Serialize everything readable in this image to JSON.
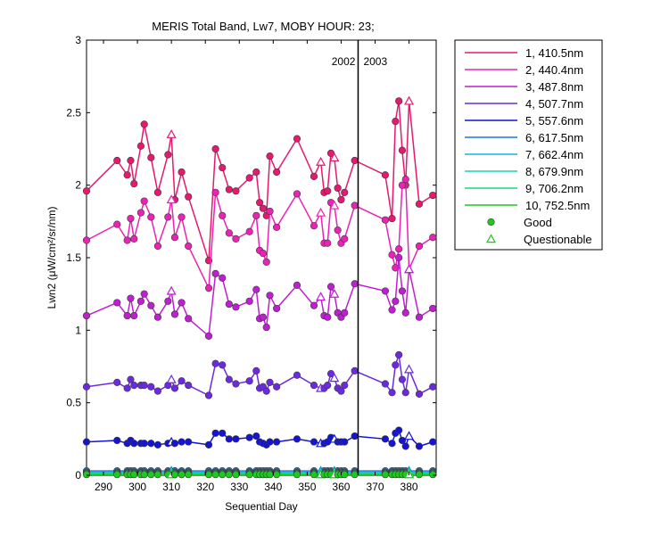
{
  "chart_data": {
    "type": "line",
    "title": "MERIS Total Band, Lw7, MOBY HOUR: 23;",
    "xlabel": "Sequential Day",
    "ylabel": "Lwn2 (μW/cm²/sr/nm)",
    "xlim": [
      285,
      388
    ],
    "ylim": [
      0,
      3
    ],
    "xticks": [
      290,
      300,
      310,
      320,
      330,
      340,
      350,
      360,
      370,
      380
    ],
    "yticks": [
      0,
      0.5,
      1,
      1.5,
      2,
      2.5,
      3
    ],
    "ytick_labels": [
      "0",
      "0.5",
      "1",
      "1.5",
      "2",
      "2.5",
      "3"
    ],
    "year_divider": {
      "x": 365,
      "labels": [
        "2002",
        "2003"
      ]
    },
    "legend_position": "outside-right",
    "x": [
      285,
      294,
      297,
      298,
      299,
      301,
      302,
      304,
      306,
      309,
      310,
      311,
      313,
      315,
      321,
      323,
      325,
      327,
      329,
      333,
      335,
      336,
      337,
      338,
      339,
      341,
      347,
      352,
      354,
      355,
      356,
      357,
      358,
      359,
      360,
      361,
      364,
      373,
      375,
      376,
      377,
      378,
      379,
      380,
      383,
      387
    ],
    "series": [
      {
        "name": "1, 410.5nm",
        "color": "#e6196e",
        "values": [
          1.96,
          2.17,
          2.07,
          2.17,
          2.01,
          2.27,
          2.42,
          2.19,
          1.95,
          2.21,
          2.35,
          1.9,
          2.09,
          1.92,
          1.48,
          2.25,
          2.12,
          1.97,
          1.96,
          2.05,
          2.09,
          1.88,
          1.84,
          1.79,
          2.2,
          2.09,
          2.32,
          2.06,
          2.16,
          1.95,
          1.96,
          2.22,
          2.19,
          1.98,
          1.9,
          1.95,
          2.17,
          2.07,
          1.77,
          2.44,
          2.58,
          2.24,
          2.0,
          2.58,
          1.87,
          1.93
        ]
      },
      {
        "name": "2, 440.4nm",
        "color": "#ec22b6",
        "values": [
          1.62,
          1.73,
          1.62,
          1.77,
          1.63,
          1.81,
          1.89,
          1.78,
          1.58,
          1.78,
          1.9,
          1.64,
          1.78,
          1.58,
          1.29,
          1.95,
          1.79,
          1.67,
          1.63,
          1.68,
          1.79,
          1.55,
          1.53,
          1.47,
          1.82,
          1.71,
          1.94,
          1.72,
          1.81,
          1.6,
          1.6,
          1.88,
          1.86,
          1.69,
          1.6,
          1.63,
          1.86,
          1.76,
          1.52,
          1.43,
          1.56,
          2.0,
          2.04,
          1.42,
          1.58,
          1.64
        ]
      },
      {
        "name": "3, 487.8nm",
        "color": "#c01ed2",
        "values": [
          1.1,
          1.19,
          1.1,
          1.22,
          1.1,
          1.2,
          1.25,
          1.17,
          1.09,
          1.2,
          1.27,
          1.11,
          1.19,
          1.08,
          0.96,
          1.39,
          1.36,
          1.18,
          1.16,
          1.2,
          1.28,
          1.08,
          1.09,
          1.02,
          1.24,
          1.15,
          1.31,
          1.17,
          1.23,
          1.1,
          1.09,
          1.3,
          1.25,
          1.12,
          1.09,
          1.12,
          1.32,
          1.27,
          1.14,
          1.2,
          1.5,
          1.27,
          1.12,
          1.42,
          1.09,
          1.15
        ]
      },
      {
        "name": "4, 507.7nm",
        "color": "#6c2ae0",
        "values": [
          0.61,
          0.64,
          0.6,
          0.66,
          0.62,
          0.62,
          0.62,
          0.61,
          0.58,
          0.62,
          0.66,
          0.6,
          0.65,
          0.62,
          0.55,
          0.77,
          0.76,
          0.66,
          0.63,
          0.65,
          0.72,
          0.6,
          0.61,
          0.58,
          0.64,
          0.61,
          0.69,
          0.62,
          0.6,
          0.6,
          0.62,
          0.7,
          0.67,
          0.6,
          0.58,
          0.62,
          0.72,
          0.63,
          0.57,
          0.76,
          0.83,
          0.66,
          0.57,
          0.73,
          0.56,
          0.61
        ]
      },
      {
        "name": "5, 557.6nm",
        "color": "#1414d2",
        "values": [
          0.23,
          0.24,
          0.22,
          0.24,
          0.22,
          0.22,
          0.22,
          0.22,
          0.21,
          0.22,
          0.23,
          0.22,
          0.23,
          0.23,
          0.21,
          0.29,
          0.29,
          0.25,
          0.25,
          0.26,
          0.27,
          0.23,
          0.22,
          0.21,
          0.23,
          0.23,
          0.25,
          0.23,
          0.22,
          0.22,
          0.23,
          0.26,
          0.25,
          0.23,
          0.23,
          0.23,
          0.27,
          0.25,
          0.22,
          0.29,
          0.31,
          0.24,
          0.2,
          0.27,
          0.2,
          0.23
        ]
      },
      {
        "name": "6, 617.5nm",
        "color": "#1478e6",
        "values": [
          0.03,
          0.03,
          0.03,
          0.03,
          0.03,
          0.03,
          0.03,
          0.03,
          0.03,
          0.03,
          0.03,
          0.03,
          0.03,
          0.03,
          0.03,
          0.03,
          0.03,
          0.03,
          0.03,
          0.03,
          0.03,
          0.03,
          0.03,
          0.03,
          0.03,
          0.03,
          0.03,
          0.03,
          0.03,
          0.03,
          0.03,
          0.03,
          0.03,
          0.03,
          0.03,
          0.03,
          0.03,
          0.03,
          0.03,
          0.03,
          0.03,
          0.03,
          0.03,
          0.03,
          0.03,
          0.03
        ]
      },
      {
        "name": "7, 662.4nm",
        "color": "#14b4e6",
        "values": [
          0.02,
          0.02,
          0.02,
          0.02,
          0.02,
          0.02,
          0.02,
          0.02,
          0.02,
          0.02,
          0.02,
          0.02,
          0.02,
          0.02,
          0.02,
          0.02,
          0.02,
          0.02,
          0.02,
          0.02,
          0.02,
          0.02,
          0.02,
          0.02,
          0.02,
          0.02,
          0.02,
          0.02,
          0.02,
          0.02,
          0.02,
          0.02,
          0.02,
          0.02,
          0.02,
          0.02,
          0.02,
          0.02,
          0.02,
          0.02,
          0.02,
          0.02,
          0.02,
          0.02,
          0.02,
          0.02
        ]
      },
      {
        "name": "8, 679.9nm",
        "color": "#14d2b4",
        "values": [
          0.015,
          0.015,
          0.015,
          0.015,
          0.015,
          0.015,
          0.015,
          0.015,
          0.015,
          0.015,
          0.015,
          0.015,
          0.015,
          0.015,
          0.015,
          0.015,
          0.015,
          0.015,
          0.015,
          0.015,
          0.015,
          0.015,
          0.015,
          0.015,
          0.015,
          0.015,
          0.015,
          0.015,
          0.015,
          0.015,
          0.015,
          0.015,
          0.015,
          0.015,
          0.015,
          0.015,
          0.015,
          0.015,
          0.015,
          0.015,
          0.015,
          0.015,
          0.015,
          0.015,
          0.015,
          0.015
        ]
      },
      {
        "name": "9, 706.2nm",
        "color": "#14dc78",
        "values": [
          0.01,
          0.01,
          0.01,
          0.01,
          0.01,
          0.01,
          0.01,
          0.01,
          0.01,
          0.01,
          0.01,
          0.01,
          0.01,
          0.01,
          0.01,
          0.01,
          0.01,
          0.01,
          0.01,
          0.01,
          0.01,
          0.01,
          0.01,
          0.01,
          0.01,
          0.01,
          0.01,
          0.01,
          0.01,
          0.01,
          0.01,
          0.01,
          0.01,
          0.01,
          0.01,
          0.01,
          0.01,
          0.01,
          0.01,
          0.01,
          0.01,
          0.01,
          0.01,
          0.01,
          0.01,
          0.01
        ]
      },
      {
        "name": "10, 752.5nm",
        "color": "#1ec81e",
        "values": [
          0.005,
          0.005,
          0.005,
          0.005,
          0.005,
          0.005,
          0.005,
          0.005,
          0.005,
          0.005,
          0.005,
          0.005,
          0.005,
          0.005,
          0.005,
          0.005,
          0.005,
          0.005,
          0.005,
          0.005,
          0.005,
          0.005,
          0.005,
          0.005,
          0.005,
          0.005,
          0.005,
          0.005,
          0.005,
          0.005,
          0.005,
          0.005,
          0.005,
          0.005,
          0.005,
          0.005,
          0.005,
          0.005,
          0.005,
          0.005,
          0.005,
          0.005,
          0.005,
          0.005,
          0.005,
          0.005
        ]
      }
    ],
    "questionable_x": [
      310,
      354,
      358,
      380
    ],
    "marker_legend": [
      {
        "label": "Good",
        "marker": "circle",
        "color": "#1ec81e"
      },
      {
        "label": "Questionable",
        "marker": "triangle",
        "color": "#1ec81e"
      }
    ]
  }
}
